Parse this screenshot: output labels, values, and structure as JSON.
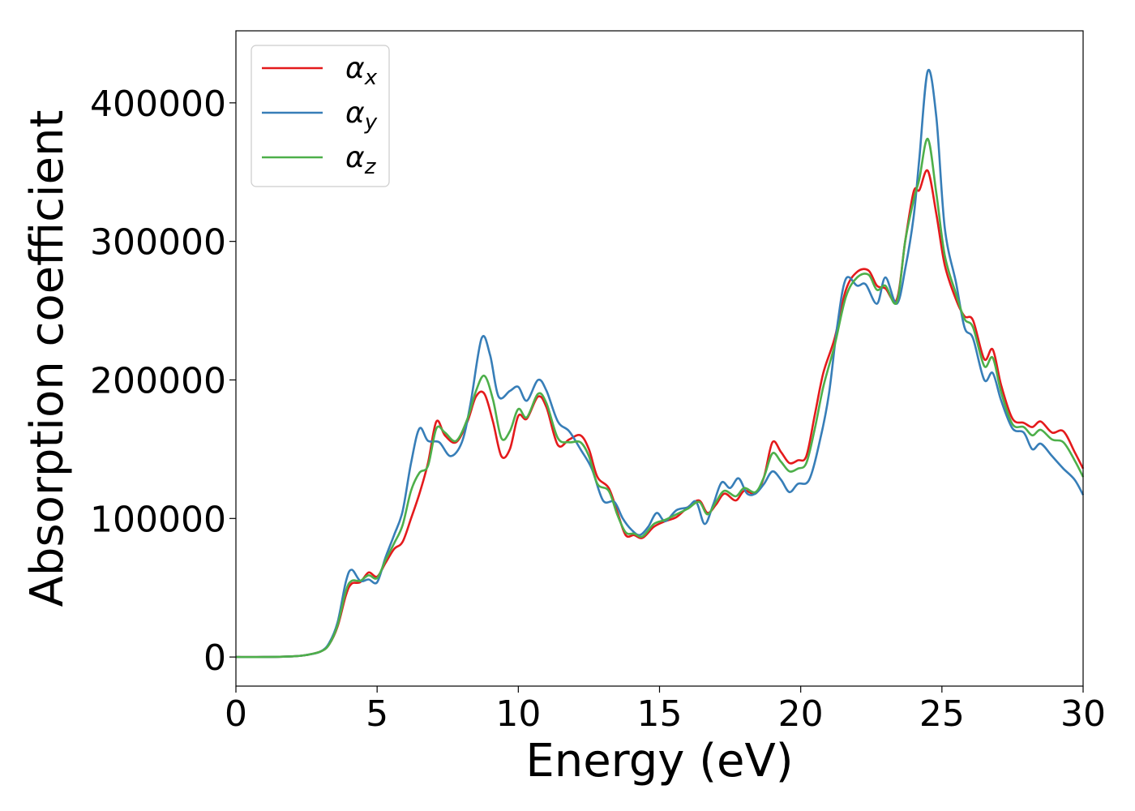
{
  "chart_data": {
    "type": "line",
    "xlabel": "Energy (eV)",
    "ylabel": "Absorption coefficient",
    "xlim": [
      0,
      30
    ],
    "ylim": [
      -21000,
      452000
    ],
    "xticks": [
      0,
      5,
      10,
      15,
      20,
      25,
      30
    ],
    "xtick_labels": [
      "0",
      "5",
      "10",
      "15",
      "20",
      "25",
      "30"
    ],
    "yticks": [
      0,
      100000,
      200000,
      300000,
      400000
    ],
    "ytick_labels": [
      "0",
      "100000",
      "200000",
      "300000",
      "400000"
    ],
    "grid": false,
    "legend_position": "top-left",
    "series": [
      {
        "name": "α",
        "subscript": "x",
        "color": "#e41a1c",
        "points": [
          [
            0,
            0
          ],
          [
            1,
            0
          ],
          [
            2,
            500
          ],
          [
            2.5,
            1500
          ],
          [
            3,
            4000
          ],
          [
            3.3,
            9000
          ],
          [
            3.6,
            22000
          ],
          [
            3.9,
            45000
          ],
          [
            4.1,
            53000
          ],
          [
            4.4,
            54000
          ],
          [
            4.7,
            61000
          ],
          [
            5.0,
            58000
          ],
          [
            5.3,
            68000
          ],
          [
            5.6,
            78000
          ],
          [
            5.9,
            83000
          ],
          [
            6.2,
            100000
          ],
          [
            6.5,
            118000
          ],
          [
            6.8,
            140000
          ],
          [
            7.1,
            170000
          ],
          [
            7.4,
            160000
          ],
          [
            7.8,
            155000
          ],
          [
            8.2,
            170000
          ],
          [
            8.5,
            188000
          ],
          [
            8.8,
            190000
          ],
          [
            9.1,
            170000
          ],
          [
            9.4,
            145000
          ],
          [
            9.7,
            150000
          ],
          [
            10.0,
            174000
          ],
          [
            10.3,
            172000
          ],
          [
            10.7,
            188000
          ],
          [
            11.0,
            180000
          ],
          [
            11.4,
            153000
          ],
          [
            11.8,
            157000
          ],
          [
            12.2,
            160000
          ],
          [
            12.5,
            150000
          ],
          [
            12.8,
            130000
          ],
          [
            13.2,
            122000
          ],
          [
            13.5,
            105000
          ],
          [
            13.8,
            88000
          ],
          [
            14.1,
            88000
          ],
          [
            14.4,
            86000
          ],
          [
            14.8,
            94000
          ],
          [
            15.2,
            98000
          ],
          [
            15.6,
            101000
          ],
          [
            16.0,
            108000
          ],
          [
            16.4,
            113000
          ],
          [
            16.7,
            104000
          ],
          [
            17.0,
            110000
          ],
          [
            17.3,
            118000
          ],
          [
            17.7,
            113000
          ],
          [
            18.0,
            120000
          ],
          [
            18.4,
            118000
          ],
          [
            18.7,
            130000
          ],
          [
            19.0,
            155000
          ],
          [
            19.3,
            148000
          ],
          [
            19.6,
            140000
          ],
          [
            19.9,
            142000
          ],
          [
            20.2,
            145000
          ],
          [
            20.5,
            175000
          ],
          [
            20.8,
            205000
          ],
          [
            21.2,
            230000
          ],
          [
            21.6,
            265000
          ],
          [
            22.0,
            278000
          ],
          [
            22.4,
            279000
          ],
          [
            22.7,
            268000
          ],
          [
            23.0,
            266000
          ],
          [
            23.4,
            258000
          ],
          [
            23.7,
            300000
          ],
          [
            24.0,
            336000
          ],
          [
            24.2,
            337000
          ],
          [
            24.5,
            351000
          ],
          [
            24.8,
            320000
          ],
          [
            25.1,
            283000
          ],
          [
            25.5,
            258000
          ],
          [
            25.8,
            246000
          ],
          [
            26.1,
            243000
          ],
          [
            26.5,
            215000
          ],
          [
            26.8,
            222000
          ],
          [
            27.1,
            196000
          ],
          [
            27.5,
            172000
          ],
          [
            27.9,
            169000
          ],
          [
            28.2,
            166000
          ],
          [
            28.5,
            170000
          ],
          [
            28.9,
            162000
          ],
          [
            29.3,
            163000
          ],
          [
            29.7,
            148000
          ],
          [
            30.0,
            136000
          ]
        ]
      },
      {
        "name": "α",
        "subscript": "y",
        "color": "#377eb8",
        "points": [
          [
            0,
            0
          ],
          [
            1,
            0
          ],
          [
            2,
            500
          ],
          [
            2.5,
            1500
          ],
          [
            3,
            4000
          ],
          [
            3.3,
            10000
          ],
          [
            3.6,
            25000
          ],
          [
            3.9,
            55000
          ],
          [
            4.1,
            63000
          ],
          [
            4.4,
            55000
          ],
          [
            4.7,
            56000
          ],
          [
            5.0,
            54000
          ],
          [
            5.3,
            72000
          ],
          [
            5.6,
            88000
          ],
          [
            5.9,
            105000
          ],
          [
            6.2,
            140000
          ],
          [
            6.5,
            165000
          ],
          [
            6.8,
            156000
          ],
          [
            7.2,
            155000
          ],
          [
            7.6,
            145000
          ],
          [
            8.0,
            155000
          ],
          [
            8.3,
            182000
          ],
          [
            8.7,
            230000
          ],
          [
            9.0,
            218000
          ],
          [
            9.3,
            188000
          ],
          [
            9.7,
            192000
          ],
          [
            10.0,
            195000
          ],
          [
            10.3,
            185000
          ],
          [
            10.7,
            200000
          ],
          [
            11.0,
            192000
          ],
          [
            11.4,
            170000
          ],
          [
            11.8,
            163000
          ],
          [
            12.2,
            150000
          ],
          [
            12.6,
            136000
          ],
          [
            13.0,
            113000
          ],
          [
            13.4,
            112000
          ],
          [
            13.7,
            100000
          ],
          [
            14.0,
            92000
          ],
          [
            14.3,
            88000
          ],
          [
            14.6,
            94000
          ],
          [
            14.9,
            104000
          ],
          [
            15.2,
            98000
          ],
          [
            15.6,
            106000
          ],
          [
            16.0,
            108000
          ],
          [
            16.3,
            112000
          ],
          [
            16.6,
            96000
          ],
          [
            16.9,
            110000
          ],
          [
            17.2,
            126000
          ],
          [
            17.5,
            122000
          ],
          [
            17.8,
            129000
          ],
          [
            18.1,
            118000
          ],
          [
            18.4,
            118000
          ],
          [
            18.7,
            125000
          ],
          [
            19.0,
            134000
          ],
          [
            19.3,
            128000
          ],
          [
            19.6,
            119000
          ],
          [
            19.9,
            125000
          ],
          [
            20.3,
            128000
          ],
          [
            20.7,
            158000
          ],
          [
            21.0,
            190000
          ],
          [
            21.3,
            240000
          ],
          [
            21.6,
            273000
          ],
          [
            22.0,
            268000
          ],
          [
            22.3,
            269000
          ],
          [
            22.7,
            255000
          ],
          [
            23.0,
            274000
          ],
          [
            23.4,
            255000
          ],
          [
            23.7,
            280000
          ],
          [
            24.0,
            318000
          ],
          [
            24.2,
            360000
          ],
          [
            24.5,
            423000
          ],
          [
            24.8,
            390000
          ],
          [
            25.1,
            310000
          ],
          [
            25.5,
            270000
          ],
          [
            25.8,
            238000
          ],
          [
            26.1,
            230000
          ],
          [
            26.5,
            200000
          ],
          [
            26.8,
            205000
          ],
          [
            27.1,
            185000
          ],
          [
            27.5,
            165000
          ],
          [
            27.9,
            162000
          ],
          [
            28.2,
            150000
          ],
          [
            28.5,
            154000
          ],
          [
            28.9,
            145000
          ],
          [
            29.3,
            136000
          ],
          [
            29.7,
            128000
          ],
          [
            30.0,
            117000
          ]
        ]
      },
      {
        "name": "α",
        "subscript": "z",
        "color": "#4daf4a",
        "points": [
          [
            0,
            0
          ],
          [
            1,
            0
          ],
          [
            2,
            500
          ],
          [
            2.5,
            1500
          ],
          [
            3,
            4000
          ],
          [
            3.3,
            9000
          ],
          [
            3.6,
            23000
          ],
          [
            3.9,
            48000
          ],
          [
            4.1,
            55000
          ],
          [
            4.4,
            55000
          ],
          [
            4.7,
            59000
          ],
          [
            5.0,
            57000
          ],
          [
            5.3,
            70000
          ],
          [
            5.6,
            82000
          ],
          [
            5.9,
            95000
          ],
          [
            6.2,
            120000
          ],
          [
            6.5,
            133000
          ],
          [
            6.8,
            138000
          ],
          [
            7.1,
            165000
          ],
          [
            7.4,
            162000
          ],
          [
            7.8,
            156000
          ],
          [
            8.2,
            172000
          ],
          [
            8.5,
            192000
          ],
          [
            8.8,
            203000
          ],
          [
            9.1,
            186000
          ],
          [
            9.4,
            158000
          ],
          [
            9.7,
            163000
          ],
          [
            10.0,
            179000
          ],
          [
            10.3,
            173000
          ],
          [
            10.7,
            190000
          ],
          [
            11.0,
            183000
          ],
          [
            11.4,
            158000
          ],
          [
            11.8,
            155000
          ],
          [
            12.2,
            155000
          ],
          [
            12.5,
            145000
          ],
          [
            12.8,
            125000
          ],
          [
            13.2,
            120000
          ],
          [
            13.5,
            103000
          ],
          [
            13.8,
            90000
          ],
          [
            14.1,
            89000
          ],
          [
            14.4,
            87000
          ],
          [
            14.8,
            96000
          ],
          [
            15.2,
            99000
          ],
          [
            15.6,
            103000
          ],
          [
            16.0,
            107000
          ],
          [
            16.4,
            112000
          ],
          [
            16.7,
            103000
          ],
          [
            17.0,
            112000
          ],
          [
            17.3,
            120000
          ],
          [
            17.7,
            116000
          ],
          [
            18.0,
            122000
          ],
          [
            18.4,
            119000
          ],
          [
            18.7,
            130000
          ],
          [
            19.0,
            147000
          ],
          [
            19.3,
            141000
          ],
          [
            19.6,
            134000
          ],
          [
            19.9,
            136000
          ],
          [
            20.2,
            140000
          ],
          [
            20.5,
            165000
          ],
          [
            20.8,
            195000
          ],
          [
            21.2,
            225000
          ],
          [
            21.6,
            260000
          ],
          [
            22.0,
            274000
          ],
          [
            22.4,
            276000
          ],
          [
            22.7,
            265000
          ],
          [
            23.0,
            268000
          ],
          [
            23.4,
            256000
          ],
          [
            23.7,
            300000
          ],
          [
            24.0,
            330000
          ],
          [
            24.2,
            345000
          ],
          [
            24.5,
            374000
          ],
          [
            24.8,
            335000
          ],
          [
            25.1,
            290000
          ],
          [
            25.5,
            262000
          ],
          [
            25.8,
            244000
          ],
          [
            26.1,
            238000
          ],
          [
            26.5,
            210000
          ],
          [
            26.8,
            216000
          ],
          [
            27.1,
            191000
          ],
          [
            27.5,
            168000
          ],
          [
            27.9,
            166000
          ],
          [
            28.2,
            160000
          ],
          [
            28.5,
            164000
          ],
          [
            28.9,
            157000
          ],
          [
            29.3,
            155000
          ],
          [
            29.7,
            142000
          ],
          [
            30.0,
            130000
          ]
        ]
      }
    ]
  }
}
